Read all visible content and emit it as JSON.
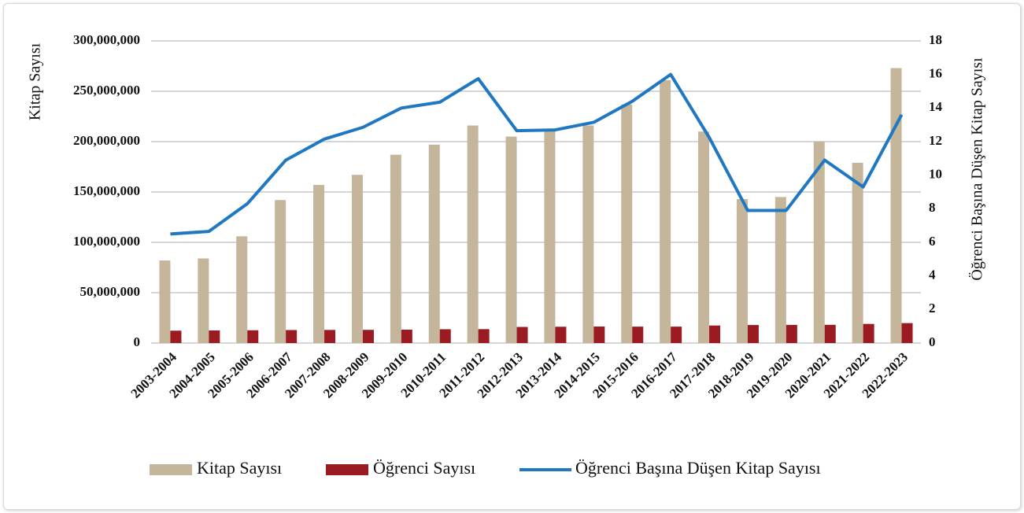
{
  "chart_data": {
    "type": "bar-line",
    "ylabel": "Kitap Sayısı",
    "y2label": "Öğrenci Başına Düşen Kitap Sayısı",
    "categories": [
      "2003-2004",
      "2004-2005",
      "2005-2006",
      "2006-2007",
      "2007-2008",
      "2008-2009",
      "2009-2010",
      "2010-2011",
      "2011-2012",
      "2012-2013",
      "2013-2014",
      "2014-2015",
      "2015-2016",
      "2016-2017",
      "2017-2018",
      "2018-2019",
      "2019-2020",
      "2020-2021",
      "2021-2022",
      "2022-2023"
    ],
    "series": [
      {
        "name": "Kitap Sayısı",
        "color": "#c4b59b",
        "type": "bar",
        "values": [
          82000000,
          84000000,
          106000000,
          142000000,
          157000000,
          167000000,
          187000000,
          197000000,
          216000000,
          205000000,
          211000000,
          216000000,
          237000000,
          261000000,
          210000000,
          143000000,
          145000000,
          200000000,
          179000000,
          273000000
        ]
      },
      {
        "name": "Öğrenci Sayısı",
        "color": "#9b1b22",
        "type": "bar",
        "values": [
          12300000,
          12500000,
          12700000,
          12900000,
          13000000,
          13100000,
          13300000,
          13700000,
          13800000,
          16000000,
          16200000,
          16400000,
          16300000,
          16300000,
          17400000,
          17900000,
          18000000,
          18100000,
          19000000,
          19800000
        ]
      },
      {
        "name": "Öğrenci Başına Düşen Kitap Sayısı",
        "color": "#1f78c1",
        "type": "line",
        "axis": "y2",
        "values": [
          6.5,
          6.65,
          8.3,
          10.9,
          12.15,
          12.85,
          14.0,
          14.35,
          15.75,
          12.65,
          12.7,
          13.15,
          14.4,
          16.0,
          12.25,
          7.9,
          7.9,
          10.9,
          9.3,
          13.6
        ]
      }
    ],
    "ylim": [
      0,
      300000000
    ],
    "yticks": [
      0,
      {
        "value": 50000000,
        "label": "50,000,000"
      },
      {
        "value": 100000000,
        "label": "100,000,000"
      },
      {
        "value": 150000000,
        "label": "150,000,000"
      },
      {
        "value": 200000000,
        "label": "200,000,000"
      },
      {
        "value": 250000000,
        "label": "250,000,000"
      },
      {
        "value": 300000000,
        "label": "300,000,000"
      }
    ],
    "y2lim": [
      0,
      18
    ],
    "y2ticks": [
      0,
      2,
      4,
      6,
      8,
      10,
      12,
      14,
      16,
      18
    ],
    "grid": true,
    "legend": "bottom"
  }
}
